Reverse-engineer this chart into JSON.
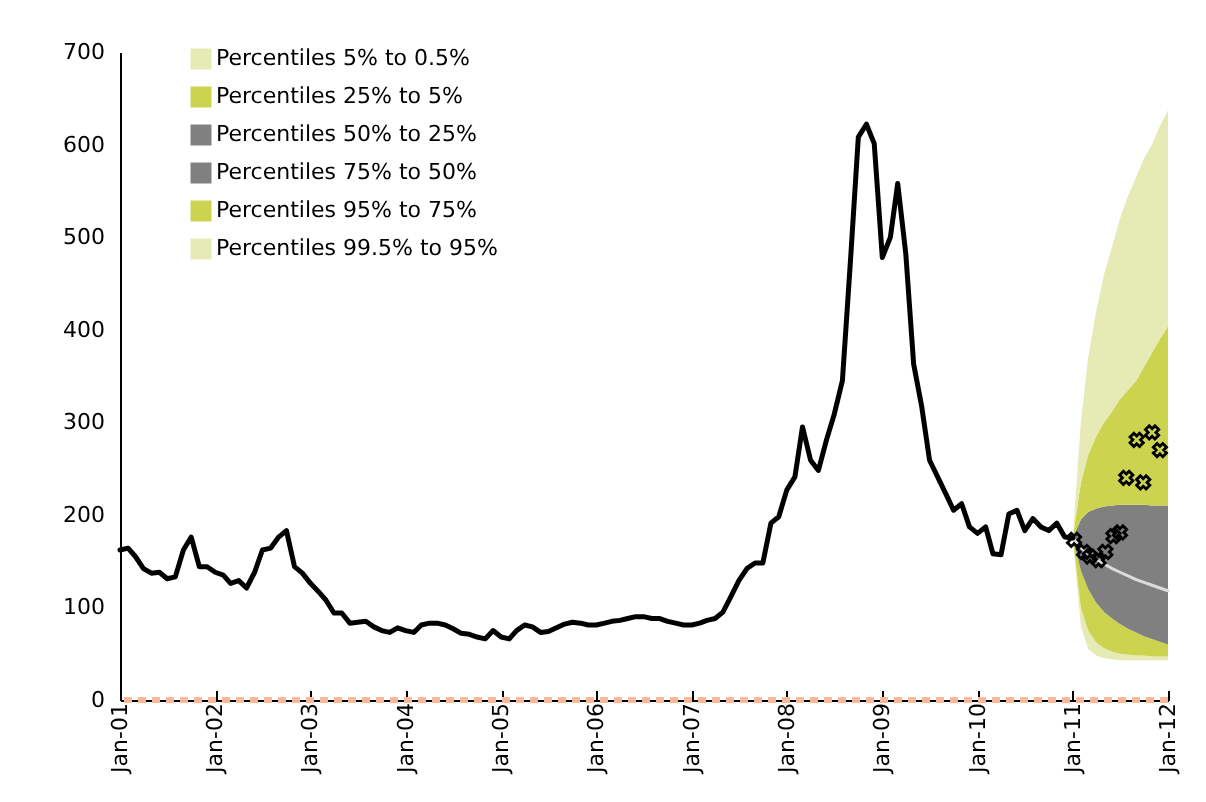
{
  "chart_data": {
    "type": "line",
    "xlim": [
      "2001-01",
      "2012-01"
    ],
    "xticks": [
      {
        "value": "2001-01",
        "label": "Jan-01"
      },
      {
        "value": "2002-01",
        "label": "Jan-02"
      },
      {
        "value": "2003-01",
        "label": "Jan-03"
      },
      {
        "value": "2004-01",
        "label": "Jan-04"
      },
      {
        "value": "2005-01",
        "label": "Jan-05"
      },
      {
        "value": "2006-01",
        "label": "Jan-06"
      },
      {
        "value": "2007-01",
        "label": "Jan-07"
      },
      {
        "value": "2008-01",
        "label": "Jan-08"
      },
      {
        "value": "2009-01",
        "label": "Jan-09"
      },
      {
        "value": "2010-01",
        "label": "Jan-10"
      },
      {
        "value": "2011-01",
        "label": "Jan-11"
      },
      {
        "value": "2012-01",
        "label": "Jan-12"
      }
    ],
    "ylim": [
      0,
      700
    ],
    "yticks": [
      0,
      100,
      200,
      300,
      400,
      500,
      600,
      700
    ],
    "grid": false,
    "legend": "top left",
    "ref_lines": [
      {
        "axis": "y",
        "value": 0,
        "color": "#f8b89a",
        "line_style": "dashed"
      }
    ],
    "series": [
      {
        "name": "Percentiles 5% to 0.5%",
        "type": "area",
        "color": "#e6ebb5",
        "x": [
          "2011-01",
          "2011-02",
          "2011-03",
          "2011-04",
          "2011-05",
          "2011-06",
          "2011-07",
          "2011-08",
          "2011-09",
          "2011-10",
          "2011-11",
          "2011-12",
          "2012-01"
        ],
        "values": [
          null,
          null,
          null,
          null,
          null,
          null,
          null,
          null,
          null,
          null,
          null,
          null,
          null
        ],
        "lower": [
          175,
          80,
          55,
          48,
          45,
          44,
          43,
          43,
          43,
          43,
          43,
          43,
          43
        ],
        "upper": [
          175,
          100,
          75,
          62,
          56,
          52,
          50,
          49,
          48,
          48,
          47,
          47,
          47
        ]
      },
      {
        "name": "Percentiles 25% to 5%",
        "type": "area",
        "color": "#cbd34f",
        "x": [
          "2011-01",
          "2011-02",
          "2011-03",
          "2011-04",
          "2011-05",
          "2011-06",
          "2011-07",
          "2011-08",
          "2011-09",
          "2011-10",
          "2011-11",
          "2011-12",
          "2012-01"
        ],
        "values": [
          null,
          null,
          null,
          null,
          null,
          null,
          null,
          null,
          null,
          null,
          null,
          null,
          null
        ],
        "lower": [
          175,
          100,
          75,
          62,
          56,
          52,
          50,
          49,
          48,
          48,
          47,
          47,
          47
        ],
        "upper": [
          175,
          140,
          120,
          105,
          95,
          88,
          82,
          77,
          73,
          69,
          66,
          63,
          60
        ]
      },
      {
        "name": "Percentiles 50% to 25%",
        "type": "area",
        "color": "#808080",
        "x": [
          "2011-01",
          "2011-02",
          "2011-03",
          "2011-04",
          "2011-05",
          "2011-06",
          "2011-07",
          "2011-08",
          "2011-09",
          "2011-10",
          "2011-11",
          "2011-12",
          "2012-01"
        ],
        "values": [
          null,
          null,
          null,
          null,
          null,
          null,
          null,
          null,
          null,
          null,
          null,
          null,
          null
        ],
        "lower": [
          175,
          140,
          120,
          105,
          95,
          88,
          82,
          77,
          73,
          69,
          66,
          63,
          60
        ],
        "upper": [
          175,
          165,
          158,
          152,
          147,
          142,
          138,
          134,
          130,
          127,
          124,
          121,
          118
        ]
      },
      {
        "name": "Percentiles 75% to 50%",
        "type": "area",
        "color": "#808080",
        "x": [
          "2011-01",
          "2011-02",
          "2011-03",
          "2011-04",
          "2011-05",
          "2011-06",
          "2011-07",
          "2011-08",
          "2011-09",
          "2011-10",
          "2011-11",
          "2011-12",
          "2012-01"
        ],
        "values": [
          null,
          null,
          null,
          null,
          null,
          null,
          null,
          null,
          null,
          null,
          null,
          null,
          null
        ],
        "lower": [
          175,
          165,
          158,
          152,
          147,
          142,
          138,
          134,
          130,
          127,
          124,
          121,
          118
        ],
        "upper": [
          175,
          195,
          203,
          207,
          209,
          210,
          211,
          211,
          211,
          211,
          210,
          210,
          210
        ]
      },
      {
        "name": "Percentiles 95% to 75%",
        "type": "area",
        "color": "#cbd34f",
        "x": [
          "2011-01",
          "2011-02",
          "2011-03",
          "2011-04",
          "2011-05",
          "2011-06",
          "2011-07",
          "2011-08",
          "2011-09",
          "2011-10",
          "2011-11",
          "2011-12",
          "2012-01"
        ],
        "values": [
          null,
          null,
          null,
          null,
          null,
          null,
          null,
          null,
          null,
          null,
          null,
          null,
          null
        ],
        "lower": [
          175,
          195,
          203,
          207,
          209,
          210,
          211,
          211,
          211,
          211,
          210,
          210,
          210
        ],
        "upper": [
          175,
          235,
          265,
          285,
          300,
          312,
          325,
          335,
          345,
          360,
          375,
          390,
          404
        ]
      },
      {
        "name": "Percentiles 99.5% to 95%",
        "type": "area",
        "color": "#e6ebb5",
        "x": [
          "2011-01",
          "2011-02",
          "2011-03",
          "2011-04",
          "2011-05",
          "2011-06",
          "2011-07",
          "2011-08",
          "2011-09",
          "2011-10",
          "2011-11",
          "2011-12",
          "2012-01"
        ],
        "values": [
          null,
          null,
          null,
          null,
          null,
          null,
          null,
          null,
          null,
          null,
          null,
          null,
          null
        ],
        "lower": [
          175,
          235,
          265,
          285,
          300,
          312,
          325,
          335,
          345,
          360,
          375,
          390,
          404
        ],
        "upper": [
          175,
          300,
          370,
          420,
          460,
          490,
          520,
          545,
          565,
          585,
          600,
          620,
          637
        ]
      },
      {
        "type": "line",
        "color": "#dcdcdc",
        "x": [
          "2011-01",
          "2011-02",
          "2011-03",
          "2011-04",
          "2011-05",
          "2011-06",
          "2011-07",
          "2011-08",
          "2011-09",
          "2011-10",
          "2011-11",
          "2011-12",
          "2012-01"
        ],
        "values": [
          175,
          165,
          158,
          152,
          147,
          142,
          138,
          134,
          130,
          127,
          124,
          121,
          118
        ]
      },
      {
        "type": "line",
        "color": "#000000",
        "x": [
          "2001-01",
          "2001-02",
          "2001-03",
          "2001-04",
          "2001-05",
          "2001-06",
          "2001-07",
          "2001-08",
          "2001-09",
          "2001-10",
          "2001-11",
          "2001-12",
          "2002-01",
          "2002-02",
          "2002-03",
          "2002-04",
          "2002-05",
          "2002-06",
          "2002-07",
          "2002-08",
          "2002-09",
          "2002-10",
          "2002-11",
          "2002-12",
          "2003-01",
          "2003-02",
          "2003-03",
          "2003-04",
          "2003-05",
          "2003-06",
          "2003-07",
          "2003-08",
          "2003-09",
          "2003-10",
          "2003-11",
          "2003-12",
          "2004-01",
          "2004-02",
          "2004-03",
          "2004-04",
          "2004-05",
          "2004-06",
          "2004-07",
          "2004-08",
          "2004-09",
          "2004-10",
          "2004-11",
          "2004-12",
          "2005-01",
          "2005-02",
          "2005-03",
          "2005-04",
          "2005-05",
          "2005-06",
          "2005-07",
          "2005-08",
          "2005-09",
          "2005-10",
          "2005-11",
          "2005-12",
          "2006-01",
          "2006-02",
          "2006-03",
          "2006-04",
          "2006-05",
          "2006-06",
          "2006-07",
          "2006-08",
          "2006-09",
          "2006-10",
          "2006-11",
          "2006-12",
          "2007-01",
          "2007-02",
          "2007-03",
          "2007-04",
          "2007-05",
          "2007-06",
          "2007-07",
          "2007-08",
          "2007-09",
          "2007-10",
          "2007-11",
          "2007-12",
          "2008-01",
          "2008-02",
          "2008-03",
          "2008-04",
          "2008-05",
          "2008-06",
          "2008-07",
          "2008-08",
          "2008-09",
          "2008-10",
          "2008-11",
          "2008-12",
          "2009-01",
          "2009-02",
          "2009-03",
          "2009-04",
          "2009-05",
          "2009-06",
          "2009-07",
          "2009-08",
          "2009-09",
          "2009-10",
          "2009-11",
          "2009-12",
          "2010-01",
          "2010-02",
          "2010-03",
          "2010-04",
          "2010-05",
          "2010-06",
          "2010-07",
          "2010-08",
          "2010-09",
          "2010-10",
          "2010-11",
          "2010-12",
          "2011-01"
        ],
        "values": [
          162,
          164,
          155,
          142,
          137,
          138,
          131,
          133,
          162,
          176,
          144,
          144,
          138,
          135,
          126,
          129,
          121,
          138,
          162,
          164,
          176,
          183,
          144,
          137,
          126,
          117,
          108,
          94,
          94,
          83,
          84,
          85,
          79,
          75,
          73,
          78,
          75,
          73,
          81,
          83,
          83,
          81,
          77,
          72,
          71,
          68,
          66,
          75,
          68,
          66,
          75,
          81,
          79,
          73,
          74,
          78,
          82,
          84,
          83,
          81,
          81,
          83,
          85,
          86,
          88,
          90,
          90,
          88,
          88,
          85,
          83,
          81,
          81,
          83,
          86,
          88,
          95,
          112,
          129,
          142,
          148,
          148,
          191,
          198,
          227,
          241,
          295,
          259,
          248,
          281,
          309,
          345,
          475,
          608,
          622,
          601,
          478,
          500,
          558,
          482,
          363,
          317,
          259,
          241,
          223,
          205,
          212,
          187,
          180,
          187,
          158,
          157,
          201,
          205,
          183,
          196,
          187,
          183,
          191,
          176,
          175
        ]
      },
      {
        "type": "scatter",
        "color": "#000000",
        "marker": "cross",
        "x": [
          "2011-01-06",
          "2011-02-13",
          "2011-03-08",
          "2011-04-10",
          "2011-05-06",
          "2011-06-06",
          "2011-07-01",
          "2011-07-25",
          "2011-09-03",
          "2011-09-28",
          "2011-11-01",
          "2011-12-01"
        ],
        "values": [
          173,
          160,
          155,
          151,
          160,
          177,
          181,
          240,
          281,
          235,
          289,
          270
        ]
      }
    ]
  }
}
